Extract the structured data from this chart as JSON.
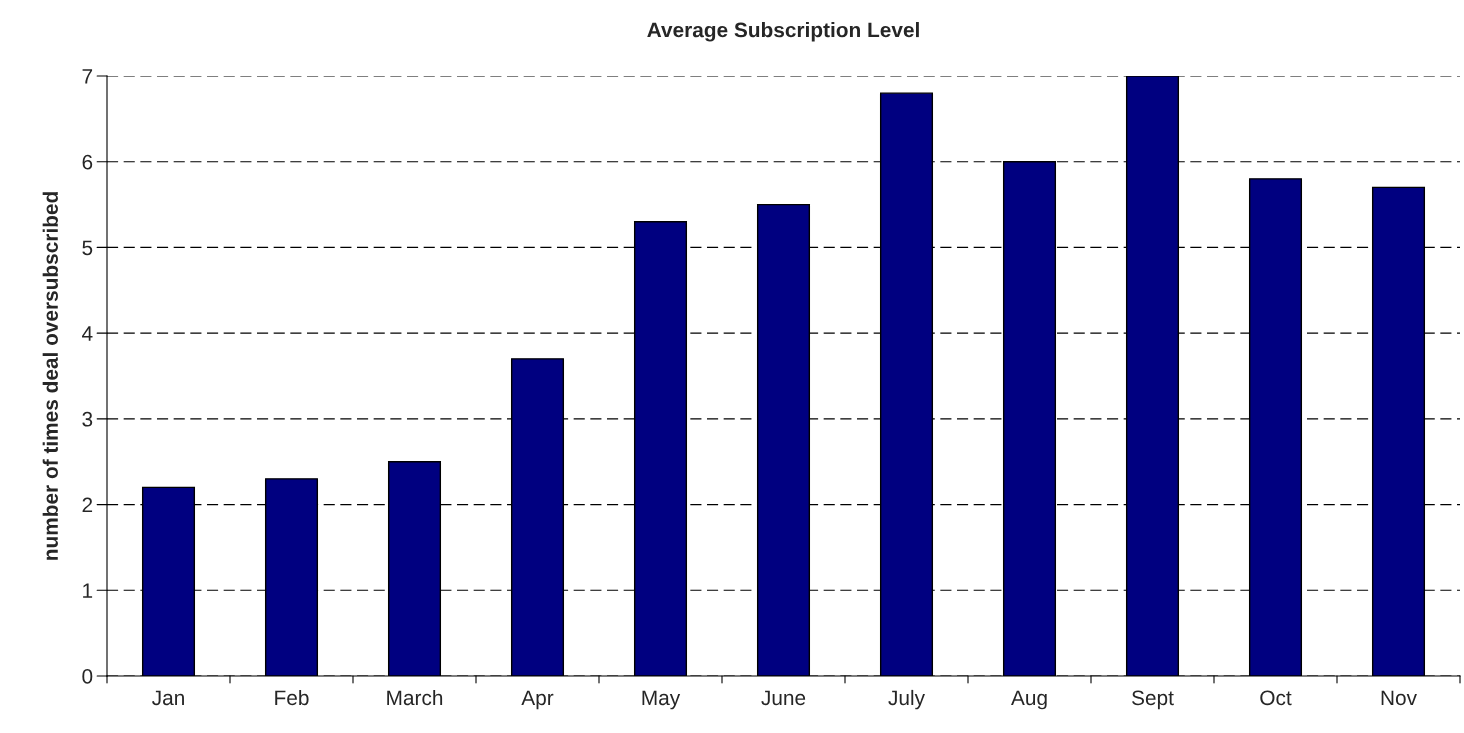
{
  "chart_data": {
    "type": "bar",
    "title": "Average Subscription Level",
    "ylabel": "number of times deal oversubscribed",
    "categories": [
      "Jan",
      "Feb",
      "March",
      "Apr",
      "May",
      "June",
      "July",
      "Aug",
      "Sept",
      "Oct",
      "Nov"
    ],
    "values": [
      2.2,
      2.3,
      2.5,
      3.7,
      5.3,
      5.5,
      6.8,
      6.0,
      7.0,
      5.8,
      5.7
    ],
    "color": "#000080",
    "ylim": [
      0,
      7
    ],
    "yticks": [
      0,
      1,
      2,
      3,
      4,
      5,
      6,
      7
    ],
    "grid": "y",
    "line_style": "dashed"
  }
}
